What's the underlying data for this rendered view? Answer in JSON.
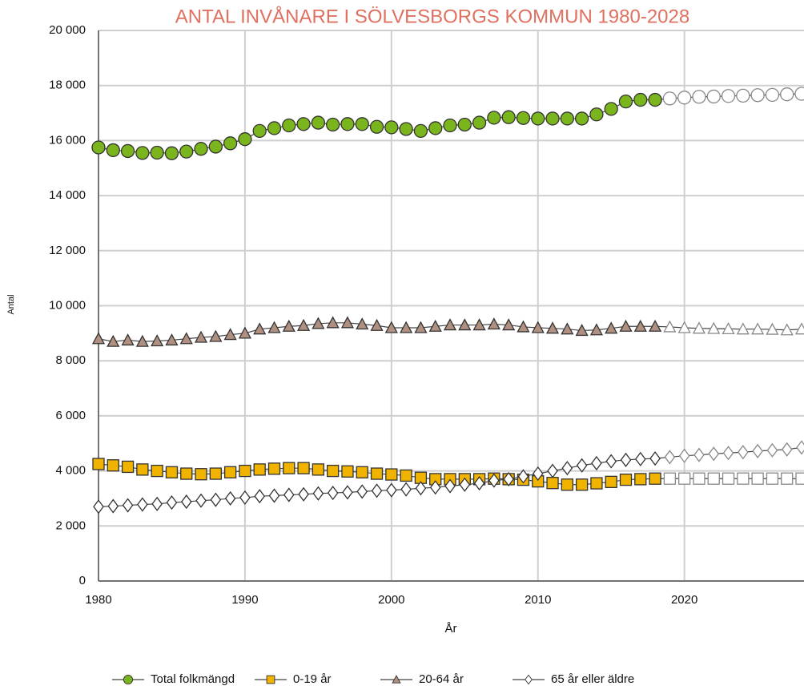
{
  "chart_data": {
    "type": "line",
    "title": "ANTAL INVÅNARE I SÖLVESBORGS KOMMUN 1980-2028",
    "x_label": "År",
    "y_label": "Antal",
    "x": [
      1980,
      1981,
      1982,
      1983,
      1984,
      1985,
      1986,
      1987,
      1988,
      1989,
      1990,
      1991,
      1992,
      1993,
      1994,
      1995,
      1996,
      1997,
      1998,
      1999,
      2000,
      2001,
      2002,
      2003,
      2004,
      2005,
      2006,
      2007,
      2008,
      2009,
      2010,
      2011,
      2012,
      2013,
      2014,
      2015,
      2016,
      2017,
      2018,
      2019,
      2020,
      2021,
      2022,
      2023,
      2024,
      2025,
      2026,
      2027,
      2028
    ],
    "forecast_start": 2019,
    "xlim": [
      1980,
      2028
    ],
    "xticks": [
      1980,
      1990,
      2000,
      2010,
      2020
    ],
    "ylim": [
      0,
      20000
    ],
    "yticks": [
      0,
      {
        "value": 2000,
        "label": "2 000"
      },
      {
        "value": 4000,
        "label": "4 000"
      },
      {
        "value": 6000,
        "label": "6 000"
      },
      {
        "value": 8000,
        "label": "8 000"
      },
      {
        "value": 10000,
        "label": "10 000"
      },
      {
        "value": 12000,
        "label": "12 000"
      },
      {
        "value": 14000,
        "label": "14 000"
      },
      {
        "value": 16000,
        "label": "16 000"
      },
      {
        "value": 18000,
        "label": "18 000"
      },
      {
        "value": 20000,
        "label": "20 000"
      }
    ],
    "grid": true,
    "legend": "bottom",
    "series": [
      {
        "name": "Total folkmängd",
        "color": "#7ab51d",
        "marker": "circle",
        "values": [
          15750,
          15650,
          15620,
          15550,
          15560,
          15540,
          15600,
          15700,
          15780,
          15900,
          16050,
          16350,
          16450,
          16550,
          16600,
          16650,
          16580,
          16600,
          16600,
          16500,
          16480,
          16420,
          16350,
          16450,
          16550,
          16580,
          16650,
          16830,
          16850,
          16820,
          16800,
          16800,
          16800,
          16800,
          16950,
          17150,
          17420,
          17480,
          17480,
          17530,
          17560,
          17590,
          17600,
          17620,
          17630,
          17650,
          17660,
          17680,
          17700
        ]
      },
      {
        "name": "0-19 år",
        "color": "#f0b400",
        "marker": "square",
        "values": [
          4250,
          4200,
          4150,
          4050,
          4000,
          3950,
          3900,
          3880,
          3900,
          3950,
          4000,
          4050,
          4080,
          4100,
          4100,
          4050,
          4000,
          3980,
          3950,
          3900,
          3870,
          3830,
          3750,
          3700,
          3700,
          3700,
          3700,
          3720,
          3700,
          3680,
          3620,
          3560,
          3500,
          3500,
          3550,
          3600,
          3680,
          3700,
          3720,
          3720,
          3720,
          3720,
          3720,
          3720,
          3720,
          3720,
          3720,
          3720,
          3720
        ]
      },
      {
        "name": "20-64 år",
        "color": "#b09080",
        "marker": "triangle",
        "values": [
          8800,
          8700,
          8750,
          8700,
          8720,
          8750,
          8800,
          8850,
          8880,
          8950,
          9000,
          9150,
          9200,
          9250,
          9280,
          9350,
          9380,
          9380,
          9330,
          9280,
          9200,
          9200,
          9200,
          9250,
          9300,
          9300,
          9300,
          9330,
          9300,
          9230,
          9200,
          9180,
          9150,
          9100,
          9120,
          9180,
          9250,
          9250,
          9250,
          9230,
          9200,
          9180,
          9170,
          9160,
          9150,
          9150,
          9140,
          9120,
          9150
        ]
      },
      {
        "name": "65 år eller äldre",
        "color": "#ffffff",
        "marker": "diamond",
        "values": [
          2700,
          2720,
          2750,
          2780,
          2800,
          2850,
          2880,
          2920,
          2950,
          3000,
          3030,
          3080,
          3100,
          3130,
          3150,
          3180,
          3200,
          3220,
          3250,
          3280,
          3300,
          3330,
          3370,
          3400,
          3450,
          3500,
          3550,
          3650,
          3700,
          3800,
          3900,
          4000,
          4100,
          4200,
          4280,
          4350,
          4400,
          4430,
          4450,
          4500,
          4550,
          4580,
          4620,
          4650,
          4680,
          4720,
          4750,
          4780,
          4850
        ]
      }
    ]
  }
}
